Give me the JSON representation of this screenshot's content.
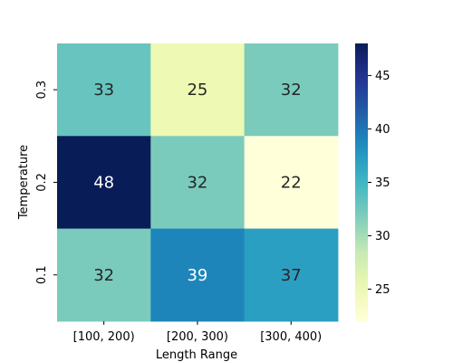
{
  "chart_data": {
    "type": "heatmap",
    "title": "",
    "xlabel": "Length Range",
    "ylabel": "Temperature",
    "x_categories": [
      "[100, 200)",
      "[200, 300)",
      "[300, 400)"
    ],
    "y_categories": [
      "0.3",
      "0.2",
      "0.1"
    ],
    "values": [
      [
        33,
        25,
        32
      ],
      [
        48,
        32,
        22
      ],
      [
        32,
        39,
        37
      ]
    ],
    "colormap": "YlGnBu",
    "colorbar": {
      "range": [
        22,
        48
      ],
      "ticks": [
        25,
        30,
        35,
        40,
        45
      ]
    },
    "grid": false,
    "legend": "colorbar-right"
  }
}
